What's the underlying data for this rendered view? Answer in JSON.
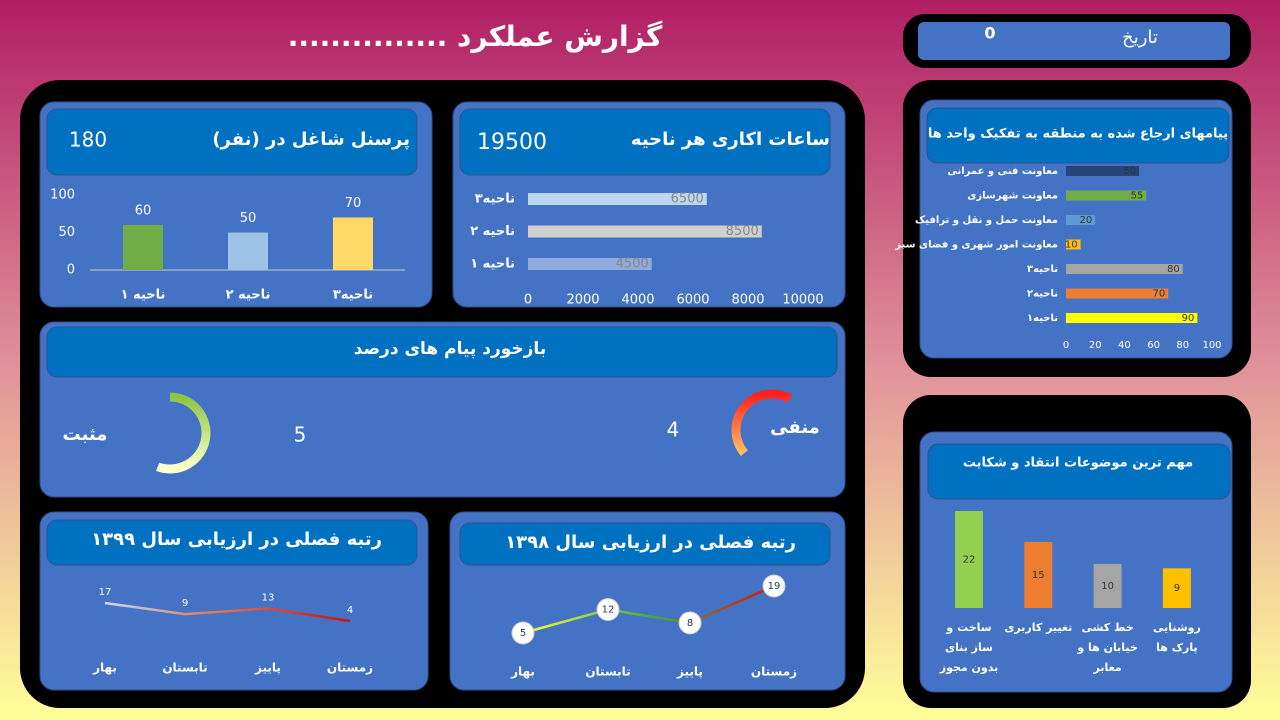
{
  "header": {
    "title": "گزارش عملکرد ...............",
    "date_label": "تاریخ",
    "date_value": 0
  },
  "chart_data": [
    {
      "type": "bar",
      "title": "پرسنل شاغل در (نفر)",
      "total": 180,
      "categories": [
        "ناحیه ۱",
        "ناحیه ۲",
        "ناحیه۳"
      ],
      "values": [
        60,
        50,
        70
      ],
      "colors": [
        "#70ad47",
        "#9dc3e6",
        "#ffd966"
      ],
      "ylim": [
        0,
        100
      ],
      "yticks": [
        0,
        50,
        100
      ]
    },
    {
      "type": "hbar",
      "title": "ساعات اکاری هر ناحیه",
      "total": 19500,
      "categories": [
        "ناحیه ۱",
        "ناحیه ۲",
        "ناحیه۳"
      ],
      "values": [
        4500,
        8500,
        6500
      ],
      "colors": [
        "#8faadc",
        "#d0d0d0",
        "#bdd7ee"
      ],
      "xlim": [
        0,
        10000
      ],
      "xticks": [
        0,
        2000,
        4000,
        6000,
        8000,
        10000
      ]
    },
    {
      "type": "gauge",
      "title": "بازخورد پیام های درصد",
      "categories": [
        "مثبت",
        "منفی"
      ],
      "values": [
        5,
        4
      ]
    },
    {
      "type": "line",
      "title": "رتبه فصلی در ارزیابی سال ۱۳۹۹",
      "categories": [
        "بهار",
        "تابستان",
        "پاییز",
        "زمستان"
      ],
      "values": [
        17,
        9,
        13,
        4
      ],
      "markers": false
    },
    {
      "type": "line",
      "title": "رتبه فصلی در ارزیابی سال ۱۳۹۸",
      "categories": [
        "بهار",
        "تابستان",
        "پاییز",
        "زمستان"
      ],
      "values": [
        5,
        12,
        8,
        19
      ],
      "markers": true
    },
    {
      "type": "hbar",
      "title": "پیامهای ارجاع شده به منطقه به تفکیک واحد ها",
      "categories": [
        "ناحیه۱",
        "ناحیه۲",
        "ناحیه۳",
        "معاونت امور شهری و فضای سبز",
        "معاونت حمل و نقل و ترافیک",
        "معاونت شهرسازی",
        "معاونت فنی و عمرانی"
      ],
      "values": [
        90,
        70,
        80,
        10,
        20,
        55,
        50
      ],
      "colors": [
        "#ffff00",
        "#ed7d31",
        "#a5a5a5",
        "#ffc000",
        "#5b9bd5",
        "#70ad47",
        "#264478"
      ],
      "xlim": [
        0,
        100
      ],
      "xticks": [
        0,
        20,
        40,
        60,
        80,
        100
      ]
    },
    {
      "type": "bar",
      "title": "مهم ترین موضوعات انتقاد و شکایت",
      "categories": [
        "ساخت و ساز بنای بدون مجوز",
        "تغییر کاربری",
        "خط کشی خیابان ها و معابر",
        "روشنایی پارک ها"
      ],
      "values": [
        22,
        15,
        10,
        9
      ],
      "colors": [
        "#92d050",
        "#ed7d31",
        "#a5a5a5",
        "#ffc000"
      ]
    }
  ]
}
